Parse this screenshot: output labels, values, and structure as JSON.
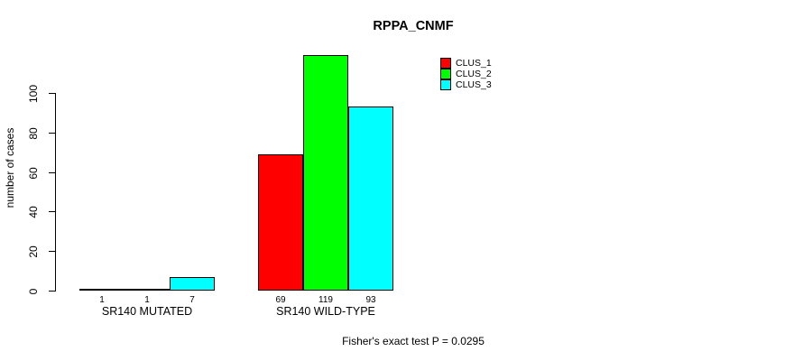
{
  "chart_data": {
    "type": "bar",
    "title": "RPPA_CNMF",
    "xlabel": "",
    "ylabel": "number of cases",
    "categories": [
      "SR140 MUTATED",
      "SR140 WILD-TYPE"
    ],
    "series": [
      {
        "name": "CLUS_1",
        "color": "#ff0000",
        "values": [
          1,
          69
        ]
      },
      {
        "name": "CLUS_2",
        "color": "#00ff00",
        "values": [
          1,
          119
        ]
      },
      {
        "name": "CLUS_3",
        "color": "#00ffff",
        "values": [
          7,
          93
        ]
      }
    ],
    "yticks": [
      0,
      20,
      40,
      60,
      80,
      100
    ],
    "ylim": [
      0,
      119
    ],
    "grid": false,
    "bar_value_labels": [
      [
        1,
        1,
        7
      ],
      [
        69,
        119,
        93
      ]
    ],
    "legend_position": "top-right",
    "annotation": "Fisher's exact test P = 0.0295",
    "colors": {
      "axis": "#000000",
      "bar_border": "#000000",
      "background": "#ffffff",
      "text": "#000000"
    }
  }
}
